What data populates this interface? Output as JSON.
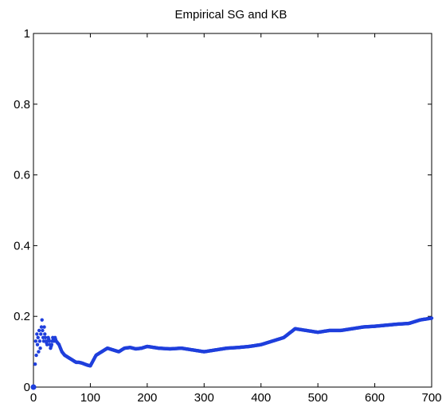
{
  "chart_data": {
    "type": "scatter",
    "title": "Empirical SG and KB",
    "xlabel": "",
    "ylabel": "",
    "xlim": [
      0,
      700
    ],
    "ylim": [
      0,
      1
    ],
    "grid": false,
    "x_ticks": [
      "0",
      "100",
      "200",
      "300",
      "400",
      "500",
      "600",
      "700"
    ],
    "y_ticks": [
      "0",
      "0.2",
      "0.4",
      "0.6",
      "0.8",
      "1"
    ],
    "color": "#1f3fdc",
    "marker": "point",
    "series": [
      {
        "x": [
          0,
          2,
          4,
          5,
          6,
          7,
          8,
          9,
          10,
          11,
          12,
          13,
          14,
          15,
          16,
          17,
          18,
          19,
          20,
          22,
          24,
          26,
          28,
          30,
          32,
          34,
          36,
          38,
          40,
          45,
          50,
          55,
          60,
          65,
          70,
          75,
          80,
          85,
          90,
          95,
          100,
          110,
          120,
          130,
          140,
          150,
          160,
          170,
          180,
          190,
          200,
          220,
          240,
          260,
          280,
          300,
          320,
          340,
          360,
          380,
          400,
          420,
          440,
          460,
          480,
          500,
          520,
          540,
          560,
          580,
          600,
          620,
          640,
          660,
          680,
          700
        ],
        "y": [
          0,
          0,
          0.13,
          0.09,
          0.15,
          0.12,
          0.14,
          0.1,
          0.16,
          0.13,
          0.11,
          0.15,
          0.17,
          0.19,
          0.16,
          0.14,
          0.13,
          0.17,
          0.15,
          0.13,
          0.12,
          0.14,
          0.13,
          0.11,
          0.12,
          0.14,
          0.13,
          0.14,
          0.13,
          0.12,
          0.1,
          0.09,
          0.085,
          0.08,
          0.075,
          0.07,
          0.07,
          0.068,
          0.065,
          0.062,
          0.06,
          0.09,
          0.1,
          0.11,
          0.105,
          0.1,
          0.11,
          0.112,
          0.108,
          0.11,
          0.115,
          0.11,
          0.108,
          0.11,
          0.105,
          0.1,
          0.105,
          0.11,
          0.112,
          0.115,
          0.12,
          0.13,
          0.14,
          0.165,
          0.16,
          0.155,
          0.16,
          0.16,
          0.165,
          0.17,
          0.172,
          0.175,
          0.178,
          0.18,
          0.19,
          0.195
        ]
      }
    ]
  }
}
